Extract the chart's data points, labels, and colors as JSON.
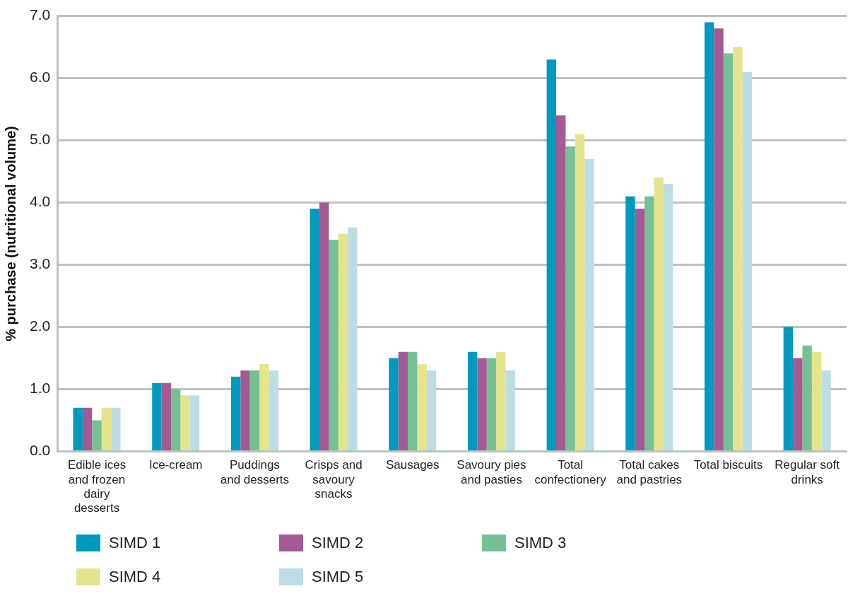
{
  "chart_data": {
    "type": "bar",
    "ylabel": "% purchase (nutritional volume)",
    "categories": [
      "Edible ices and frozen dairy desserts",
      "Ice-cream",
      "Puddings and desserts",
      "Crisps and savoury snacks",
      "Sausages",
      "Savoury pies and pasties",
      "Total confectionery",
      "Total cakes and pastries",
      "Total biscuits",
      "Regular soft drinks"
    ],
    "series": [
      {
        "name": "SIMD 1",
        "color": "#009abf",
        "values": [
          0.7,
          1.1,
          1.2,
          3.9,
          1.5,
          1.6,
          6.3,
          4.1,
          6.9,
          2.0
        ]
      },
      {
        "name": "SIMD 2",
        "color": "#a55a93",
        "values": [
          0.7,
          1.1,
          1.3,
          4.0,
          1.6,
          1.5,
          5.4,
          3.9,
          6.8,
          1.5
        ]
      },
      {
        "name": "SIMD 3",
        "color": "#74c195",
        "values": [
          0.5,
          1.0,
          1.3,
          3.4,
          1.6,
          1.5,
          4.9,
          4.1,
          6.4,
          1.7
        ]
      },
      {
        "name": "SIMD 4",
        "color": "#e5e38c",
        "values": [
          0.7,
          0.9,
          1.4,
          3.5,
          1.4,
          1.6,
          5.1,
          4.4,
          6.5,
          1.6
        ]
      },
      {
        "name": "SIMD 5",
        "color": "#bcdde5",
        "values": [
          0.7,
          0.9,
          1.3,
          3.6,
          1.3,
          1.3,
          4.7,
          4.3,
          6.1,
          1.3
        ]
      }
    ],
    "ylim": [
      0,
      7
    ],
    "yticks": [
      {
        "value": 0,
        "label": "0.0"
      },
      {
        "value": 1,
        "label": "1.0"
      },
      {
        "value": 2,
        "label": "2.0"
      },
      {
        "value": 3,
        "label": "3.0"
      },
      {
        "value": 4,
        "label": "4.0"
      },
      {
        "value": 5,
        "label": "5.0"
      },
      {
        "value": 6,
        "label": "6.0"
      },
      {
        "value": 7,
        "label": "7.0"
      }
    ],
    "grid": "y",
    "legend": "bottom"
  }
}
